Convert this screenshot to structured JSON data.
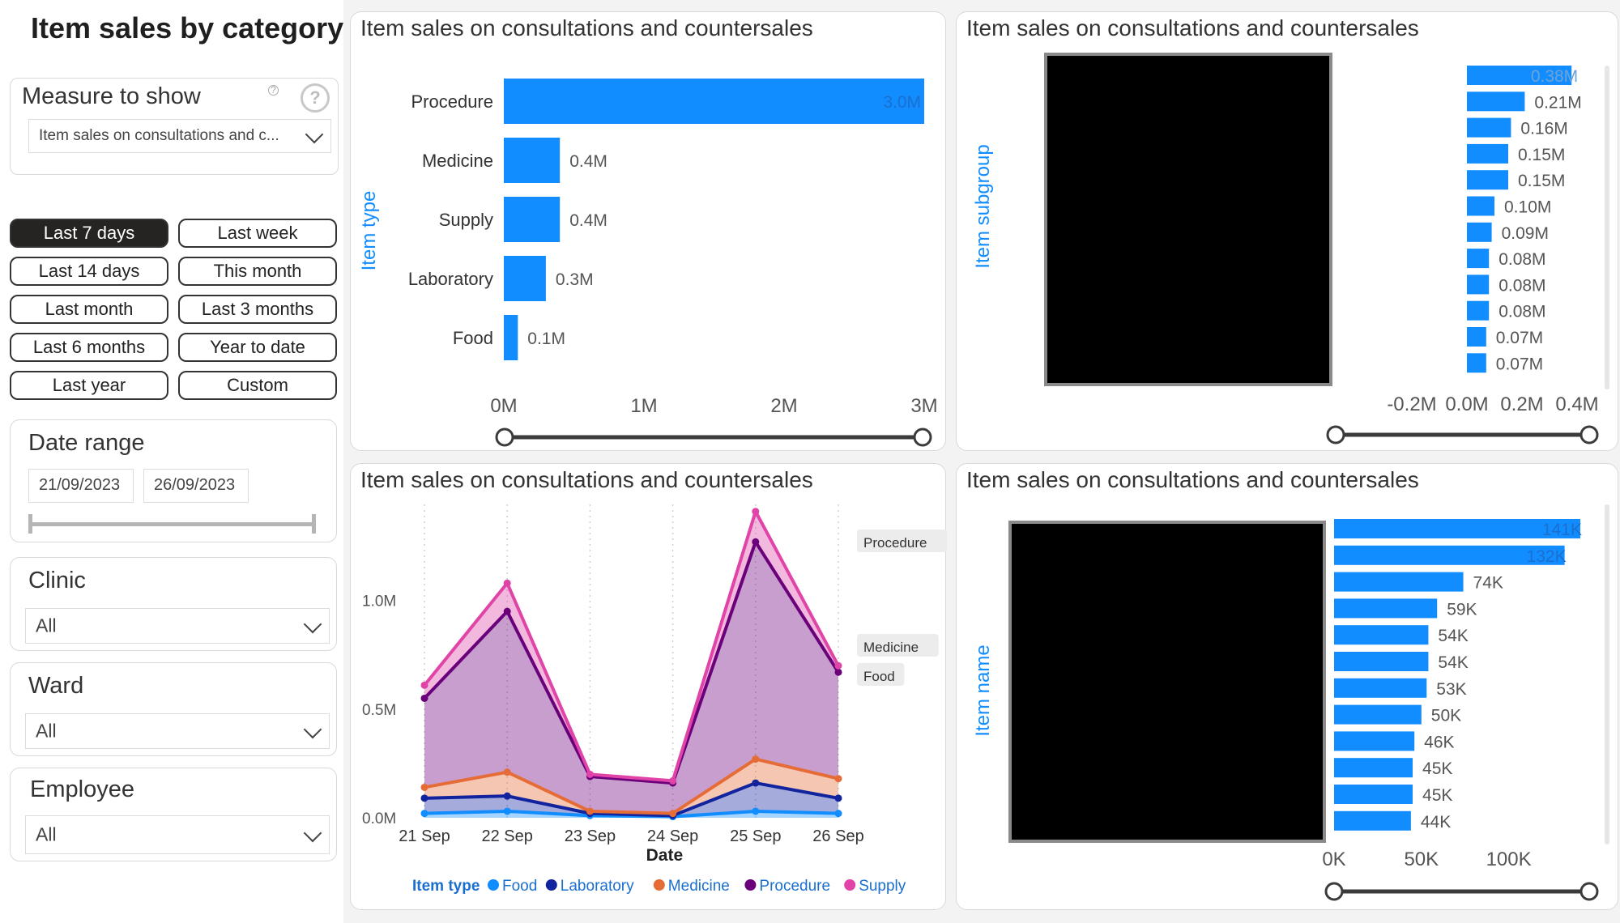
{
  "page": {
    "title": "Item sales by category"
  },
  "measure": {
    "title": "Measure to show",
    "value": "Item sales on consultations and c..."
  },
  "date_buttons": [
    "Last 7 days",
    "Last week",
    "Last 14 days",
    "This month",
    "Last month",
    "Last 3 months",
    "Last 6 months",
    "Year to date",
    "Last year",
    "Custom"
  ],
  "date_buttons_active": "Last 7 days",
  "date_range": {
    "title": "Date range",
    "start": "21/09/2023",
    "end": "26/09/2023"
  },
  "clinic": {
    "title": "Clinic",
    "value": "All"
  },
  "ward": {
    "title": "Ward",
    "value": "All"
  },
  "employee": {
    "title": "Employee",
    "value": "All"
  },
  "colors": {
    "bar": "#118dff",
    "food": "#118dff",
    "laboratory": "#12239e",
    "medicine": "#e66c37",
    "procedure": "#6b007b",
    "supply": "#e044a7"
  },
  "chart_data": [
    {
      "type": "bar",
      "title": "Item sales on consultations and countersales",
      "ylabel": "Item type",
      "categories": [
        "Procedure",
        "Medicine",
        "Supply",
        "Laboratory",
        "Food"
      ],
      "values": [
        3.0,
        0.4,
        0.4,
        0.3,
        0.1
      ],
      "value_labels": [
        "3.0M",
        "0.4M",
        "0.4M",
        "0.3M",
        "0.1M"
      ],
      "xticks": [
        "0M",
        "1M",
        "2M",
        "3M"
      ],
      "xlim": [
        0,
        3
      ]
    },
    {
      "type": "bar",
      "title": "Item sales on consultations and countersales",
      "ylabel": "Item subgroup",
      "values": [
        0.38,
        0.21,
        0.16,
        0.15,
        0.15,
        0.1,
        0.09,
        0.08,
        0.08,
        0.08,
        0.07,
        0.07
      ],
      "value_labels": [
        "0.38M",
        "0.21M",
        "0.16M",
        "0.15M",
        "0.15M",
        "0.10M",
        "0.09M",
        "0.08M",
        "0.08M",
        "0.08M",
        "0.07M",
        "0.07M"
      ],
      "xticks": [
        "-0.2M",
        "0.0M",
        "0.2M",
        "0.4M"
      ],
      "xlim": [
        -0.2,
        0.4
      ]
    },
    {
      "type": "area",
      "title": "Item sales on consultations and countersales",
      "xlabel": "Date",
      "x": [
        "21 Sep",
        "22 Sep",
        "23 Sep",
        "24 Sep",
        "25 Sep",
        "26 Sep"
      ],
      "yticks": [
        "0.0M",
        "0.5M",
        "1.0M"
      ],
      "ylim": [
        0,
        1.45
      ],
      "legend_title": "Item type",
      "series": [
        {
          "name": "Food",
          "values": [
            0.02,
            0.03,
            0.01,
            0.005,
            0.03,
            0.02
          ]
        },
        {
          "name": "Laboratory",
          "values": [
            0.07,
            0.07,
            0.01,
            0.005,
            0.13,
            0.07
          ]
        },
        {
          "name": "Medicine",
          "values": [
            0.05,
            0.11,
            0.01,
            0.01,
            0.11,
            0.09
          ]
        },
        {
          "name": "Procedure",
          "values": [
            0.41,
            0.74,
            0.16,
            0.14,
            1.0,
            0.49
          ]
        },
        {
          "name": "Supply",
          "values": [
            0.06,
            0.13,
            0.01,
            0.01,
            0.14,
            0.03
          ]
        }
      ],
      "end_labels": [
        "Procedure",
        "Medicine",
        "Food"
      ]
    },
    {
      "type": "bar",
      "title": "Item sales on consultations and countersales",
      "ylabel": "Item name",
      "values": [
        141,
        132,
        74,
        59,
        54,
        54,
        53,
        50,
        46,
        45,
        45,
        44
      ],
      "value_labels": [
        "141K",
        "132K",
        "74K",
        "59K",
        "54K",
        "54K",
        "53K",
        "50K",
        "46K",
        "45K",
        "45K",
        "44K"
      ],
      "xticks": [
        "0K",
        "50K",
        "100K"
      ],
      "xlim": [
        0,
        141
      ]
    }
  ]
}
